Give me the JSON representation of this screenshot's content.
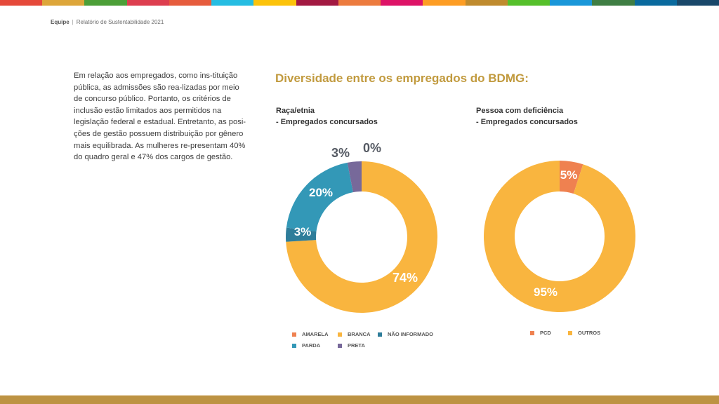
{
  "top_bar_colors": [
    "#e5493a",
    "#dda63a",
    "#4c9f38",
    "#dd3e4f",
    "#e65c3d",
    "#26bde2",
    "#fcc30b",
    "#a21942",
    "#ec7b3e",
    "#dd1367",
    "#fd9d24",
    "#bf8b2e",
    "#56c02b",
    "#1a97d9",
    "#3f7e44",
    "#0a6a9e",
    "#19486a"
  ],
  "header": {
    "section": "Equipe",
    "separator": "|",
    "document": "Relatório de Sustentabilidade 2021"
  },
  "body_text": "Em relação aos empregados, como ins-tituição pública, as admissões são rea-lizadas por meio de concurso público. Portanto, os critérios de inclusão estão limitados aos permitidos na legislação federal e estadual. Entretanto, as posi-ções de gestão possuem distribuição por gênero mais equilibrada. As mulheres re-presentam 40% do quadro geral e 47% dos cargos de gestão.",
  "main_title": "Diversidade entre os empregados do BDMG:",
  "footer_color": "#bd9343",
  "chart_data": [
    {
      "type": "pie",
      "variant": "donut",
      "title_line1": "Raça/etnia",
      "title_line2": "- Empregados concursados",
      "start": "12 o'clock",
      "direction": "clockwise",
      "slices": [
        {
          "name": "BRANCA",
          "value": 74,
          "label": "74%",
          "color": "#f9b53f",
          "label_color": "#ffffff"
        },
        {
          "name": "NÃO INFORMADO",
          "value": 3,
          "label": "3%",
          "color": "#2e7d9a",
          "label_color": "#ffffff"
        },
        {
          "name": "PARDA",
          "value": 20,
          "label": "20%",
          "color": "#3398b7",
          "label_color": "#ffffff"
        },
        {
          "name": "PRETA",
          "value": 3,
          "label": "3%",
          "color": "#77699a",
          "label_color": "#555a63"
        },
        {
          "name": "AMARELA",
          "value": 0,
          "label": "0%",
          "color": "#ef8150",
          "label_color": "#555a63"
        }
      ],
      "legend": [
        {
          "label": "AMARELA",
          "color": "#ef8150"
        },
        {
          "label": "BRANCA",
          "color": "#f9b53f"
        },
        {
          "label": "NÃO INFORMADO",
          "color": "#2e7d9a"
        },
        {
          "label": "PARDA",
          "color": "#3398b7"
        },
        {
          "label": "PRETA",
          "color": "#77699a"
        }
      ],
      "legend_position": "bottom"
    },
    {
      "type": "pie",
      "variant": "donut",
      "title_line1": "Pessoa com deficiência",
      "title_line2": "- Empregados concursados",
      "start": "12 o'clock",
      "direction": "clockwise",
      "slices": [
        {
          "name": "PCD",
          "value": 5,
          "label": "5%",
          "color": "#ef8150",
          "label_color": "#ffffff"
        },
        {
          "name": "OUTROS",
          "value": 95,
          "label": "95%",
          "color": "#f9b53f",
          "label_color": "#ffffff"
        }
      ],
      "legend": [
        {
          "label": "PCD",
          "color": "#ef8150"
        },
        {
          "label": "OUTROS",
          "color": "#f9b53f"
        }
      ],
      "legend_position": "bottom"
    }
  ]
}
